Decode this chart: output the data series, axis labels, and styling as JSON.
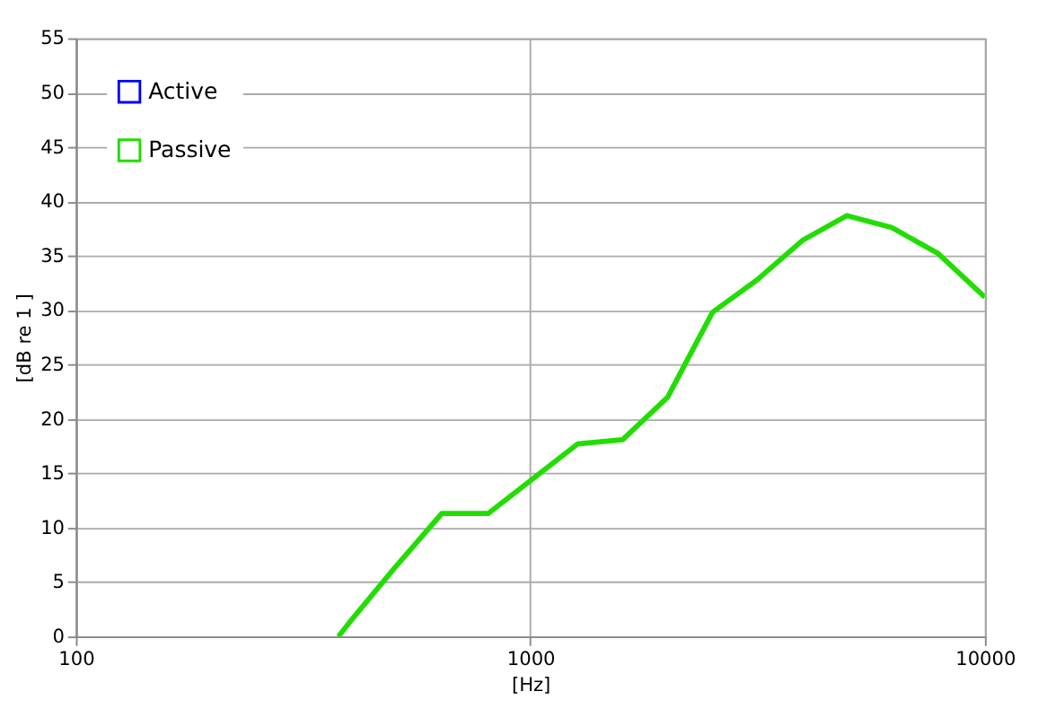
{
  "chart_data": {
    "type": "line",
    "xlabel": "[Hz]",
    "ylabel": "[dB re 1 ]",
    "log": "x",
    "xlim": [
      100,
      10000
    ],
    "xticks": [
      100,
      1000,
      10000
    ],
    "ylim": [
      0,
      55
    ],
    "yticks": [
      0,
      5,
      10,
      15,
      20,
      25,
      30,
      35,
      40,
      45,
      50,
      55
    ],
    "grid": true,
    "legend": "top left",
    "line_style": "solid",
    "x": [
      378,
      400,
      500,
      638,
      807,
      1270,
      1596,
      2004,
      2515,
      3157,
      3963,
      4970,
      6237,
      7894,
      10000
    ],
    "series": [
      {
        "name": "Active",
        "color": "#0000ff",
        "values": [
          null,
          null,
          null,
          null,
          null,
          null,
          null,
          null,
          null,
          null,
          null,
          null,
          null,
          null,
          null
        ]
      },
      {
        "name": "Passive",
        "color": "#22dd00",
        "values": [
          0,
          1.3,
          6.2,
          11.3,
          11.3,
          17.7,
          18.1,
          22.0,
          29.8,
          32.8,
          36.4,
          38.7,
          37.6,
          35.2,
          31.2
        ]
      }
    ]
  }
}
